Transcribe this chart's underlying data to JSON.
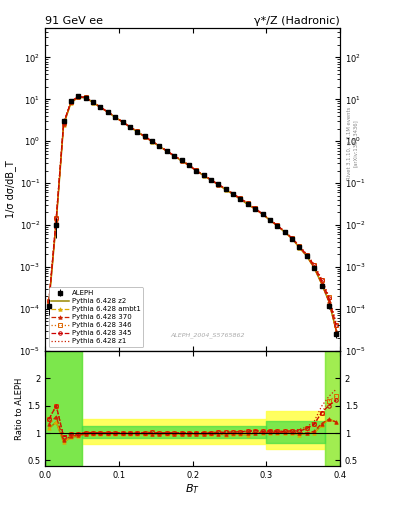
{
  "title_left": "91 GeV ee",
  "title_right": "γ*/Z (Hadronic)",
  "xlabel": "B_{T}",
  "ylabel_main": "1/σ dσ/dB_T",
  "ylabel_ratio": "Ratio to ALEPH",
  "right_label": "Rivet 3.1.10, ≥ 3.1M events",
  "right_label2": "[arXiv:1306.3436]",
  "watermark": "ALEPH_2004_S5765862",
  "legend_entries": [
    "ALEPH",
    "Pythia 6.428 345",
    "Pythia 6.428 346",
    "Pythia 6.428 370",
    "Pythia 6.428 ambt1",
    "Pythia 6.428 z1",
    "Pythia 6.428 z2"
  ],
  "data_x": [
    0.005,
    0.015,
    0.025,
    0.035,
    0.045,
    0.055,
    0.065,
    0.075,
    0.085,
    0.095,
    0.105,
    0.115,
    0.125,
    0.135,
    0.145,
    0.155,
    0.165,
    0.175,
    0.185,
    0.195,
    0.205,
    0.215,
    0.225,
    0.235,
    0.245,
    0.255,
    0.265,
    0.275,
    0.285,
    0.295,
    0.305,
    0.315,
    0.325,
    0.335,
    0.345,
    0.355,
    0.365,
    0.375,
    0.385,
    0.395
  ],
  "aleph_y": [
    0.00012,
    0.01,
    3.0,
    9.0,
    12.0,
    11.0,
    8.5,
    6.5,
    5.0,
    3.8,
    2.9,
    2.2,
    1.7,
    1.3,
    1.0,
    0.77,
    0.59,
    0.45,
    0.35,
    0.27,
    0.2,
    0.155,
    0.12,
    0.093,
    0.072,
    0.055,
    0.042,
    0.032,
    0.024,
    0.018,
    0.013,
    0.0095,
    0.0068,
    0.0047,
    0.003,
    0.0018,
    0.00095,
    0.00035,
    0.00012,
    2.5e-05
  ],
  "aleph_err": [
    5e-05,
    0.005,
    0.3,
    0.3,
    0.3,
    0.3,
    0.2,
    0.2,
    0.15,
    0.1,
    0.08,
    0.06,
    0.05,
    0.04,
    0.03,
    0.025,
    0.02,
    0.015,
    0.012,
    0.009,
    0.007,
    0.006,
    0.005,
    0.004,
    0.003,
    0.002,
    0.0015,
    0.001,
    0.0008,
    0.0006,
    0.0005,
    0.0004,
    0.0003,
    0.0002,
    0.00015,
    0.00012,
    8e-05,
    4e-05,
    2e-05,
    5e-06
  ],
  "py345_y": [
    0.00015,
    0.015,
    2.8,
    8.8,
    11.8,
    11.1,
    8.55,
    6.52,
    5.02,
    3.82,
    2.91,
    2.21,
    1.71,
    1.31,
    1.01,
    0.772,
    0.592,
    0.452,
    0.351,
    0.271,
    0.201,
    0.156,
    0.121,
    0.094,
    0.073,
    0.056,
    0.043,
    0.033,
    0.025,
    0.0185,
    0.0135,
    0.0098,
    0.007,
    0.0049,
    0.0031,
    0.00195,
    0.0011,
    0.00048,
    0.00018,
    4e-05
  ],
  "py346_y": [
    0.00015,
    0.015,
    2.8,
    8.8,
    11.8,
    11.1,
    8.55,
    6.52,
    5.02,
    3.82,
    2.91,
    2.21,
    1.71,
    1.31,
    1.01,
    0.772,
    0.592,
    0.452,
    0.351,
    0.271,
    0.201,
    0.156,
    0.121,
    0.094,
    0.073,
    0.056,
    0.043,
    0.033,
    0.025,
    0.0185,
    0.0135,
    0.0098,
    0.007,
    0.0049,
    0.0031,
    0.00195,
    0.0011,
    0.00048,
    0.00019,
    4.2e-05
  ],
  "py370_y": [
    0.00014,
    0.013,
    2.6,
    8.5,
    11.5,
    10.9,
    8.45,
    6.45,
    4.97,
    3.77,
    2.88,
    2.19,
    1.69,
    1.29,
    0.99,
    0.762,
    0.585,
    0.445,
    0.345,
    0.267,
    0.198,
    0.153,
    0.119,
    0.092,
    0.071,
    0.055,
    0.042,
    0.032,
    0.024,
    0.0182,
    0.0132,
    0.0096,
    0.0069,
    0.0048,
    0.003,
    0.0018,
    0.00098,
    0.00041,
    0.00015,
    3e-05
  ],
  "pyambt1_y": [
    0.00013,
    0.012,
    2.5,
    8.3,
    11.3,
    10.8,
    8.4,
    6.4,
    4.95,
    3.75,
    2.87,
    2.18,
    1.68,
    1.28,
    0.983,
    0.757,
    0.581,
    0.442,
    0.342,
    0.265,
    0.197,
    0.152,
    0.118,
    0.091,
    0.07,
    0.054,
    0.041,
    0.031,
    0.024,
    0.018,
    0.0131,
    0.0095,
    0.0068,
    0.0047,
    0.0029,
    0.0018,
    0.00095,
    0.0004,
    0.00015,
    3e-05
  ],
  "pyz1_y": [
    0.00015,
    0.015,
    2.8,
    8.8,
    11.8,
    11.1,
    8.55,
    6.52,
    5.02,
    3.82,
    2.91,
    2.21,
    1.71,
    1.31,
    1.01,
    0.772,
    0.592,
    0.452,
    0.351,
    0.271,
    0.201,
    0.156,
    0.121,
    0.094,
    0.073,
    0.056,
    0.043,
    0.033,
    0.025,
    0.0185,
    0.0135,
    0.0098,
    0.007,
    0.0049,
    0.0032,
    0.002,
    0.00115,
    0.00052,
    0.0002,
    4.5e-05
  ],
  "pyz2_y": [
    0.00013,
    0.012,
    2.5,
    8.3,
    11.3,
    10.8,
    8.4,
    6.4,
    4.95,
    3.75,
    2.87,
    2.18,
    1.68,
    1.28,
    0.983,
    0.757,
    0.581,
    0.442,
    0.342,
    0.265,
    0.197,
    0.152,
    0.118,
    0.091,
    0.07,
    0.054,
    0.041,
    0.031,
    0.024,
    0.018,
    0.0131,
    0.0095,
    0.0068,
    0.0047,
    0.0029,
    0.0018,
    0.00095,
    0.0004,
    0.00015,
    3e-05
  ],
  "xlim": [
    0.0,
    0.4
  ],
  "ylim_main": [
    1e-05,
    500
  ],
  "ylim_ratio": [
    0.4,
    2.5
  ],
  "ratio_yticks": [
    0.5,
    1.0,
    1.5,
    2.0
  ],
  "xticks": [
    0.0,
    0.1,
    0.2,
    0.3,
    0.4
  ],
  "color_z2": "#998800",
  "color_ambt1": "#ddaa00",
  "color_370": "#cc2200",
  "color_346": "#dd6600",
  "color_345": "#cc0000",
  "color_z1": "#cc2200",
  "ls_z2": "-",
  "ls_ambt1": "--",
  "ls_370": "--",
  "ls_346": ":",
  "ls_345": "--",
  "ls_z1": ":"
}
